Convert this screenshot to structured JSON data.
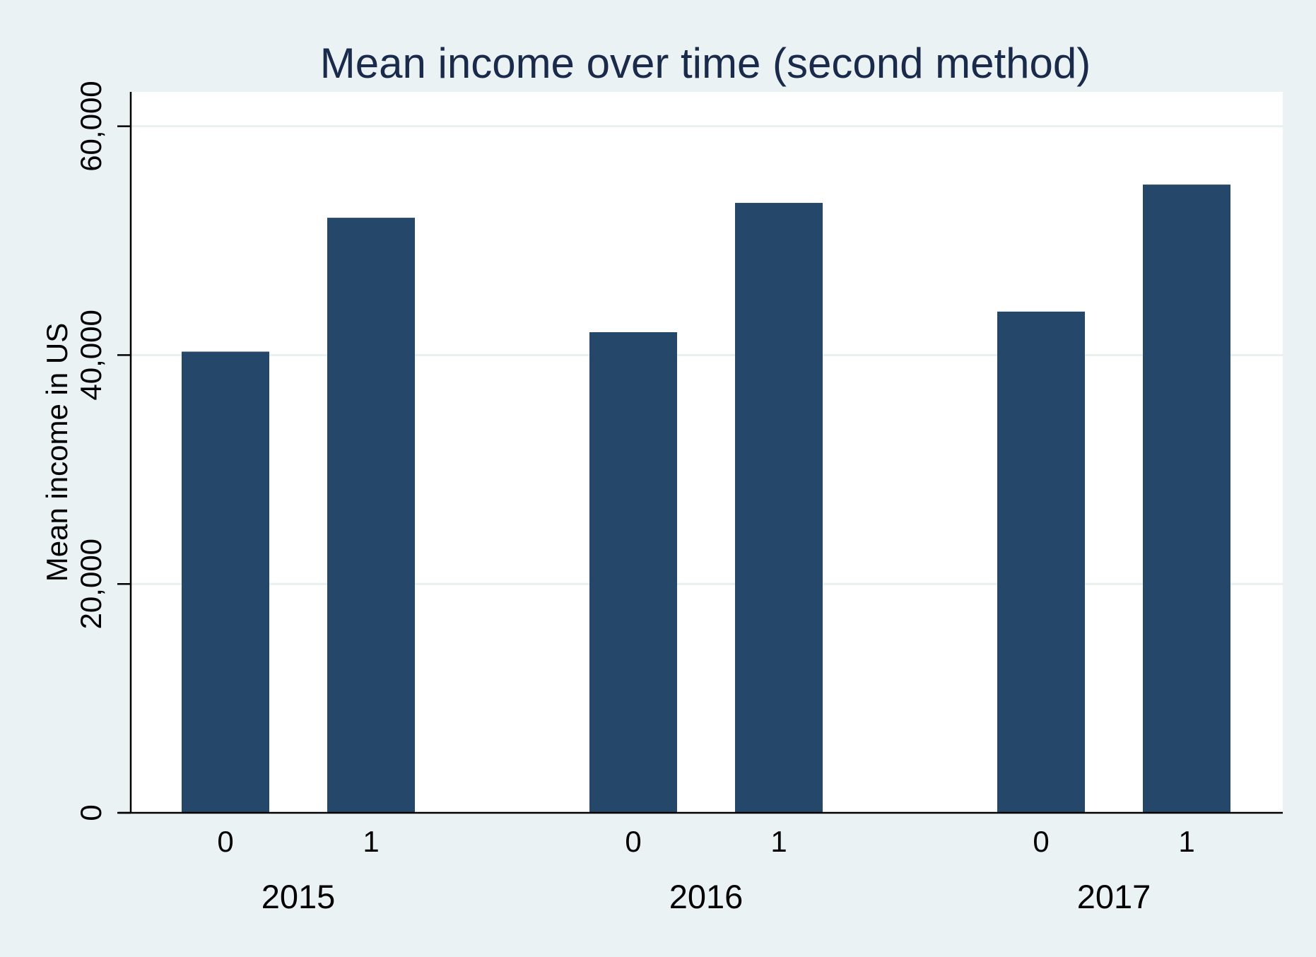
{
  "chart_data": {
    "type": "bar",
    "title": "Mean income over time (second method)",
    "ylabel": "Mean income in US",
    "xlabel": "",
    "ylim": [
      0,
      63000
    ],
    "yticks": [
      0,
      20000,
      40000,
      60000
    ],
    "ytick_labels": [
      "0",
      "20,000",
      "40,000",
      "60,000"
    ],
    "groups": [
      {
        "label": "2015",
        "bars": [
          {
            "label": "0",
            "value": 40300
          },
          {
            "label": "1",
            "value": 52000
          }
        ]
      },
      {
        "label": "2016",
        "bars": [
          {
            "label": "0",
            "value": 42000
          },
          {
            "label": "1",
            "value": 53300
          }
        ]
      },
      {
        "label": "2017",
        "bars": [
          {
            "label": "0",
            "value": 43800
          },
          {
            "label": "1",
            "value": 54900
          }
        ]
      }
    ],
    "grid": true,
    "legend": "none",
    "colors": {
      "bar": "#254769",
      "background": "#eaf2f3",
      "plot_background": "#ffffff",
      "grid": "#e8f0f0",
      "title": "#1a2a4a"
    }
  }
}
